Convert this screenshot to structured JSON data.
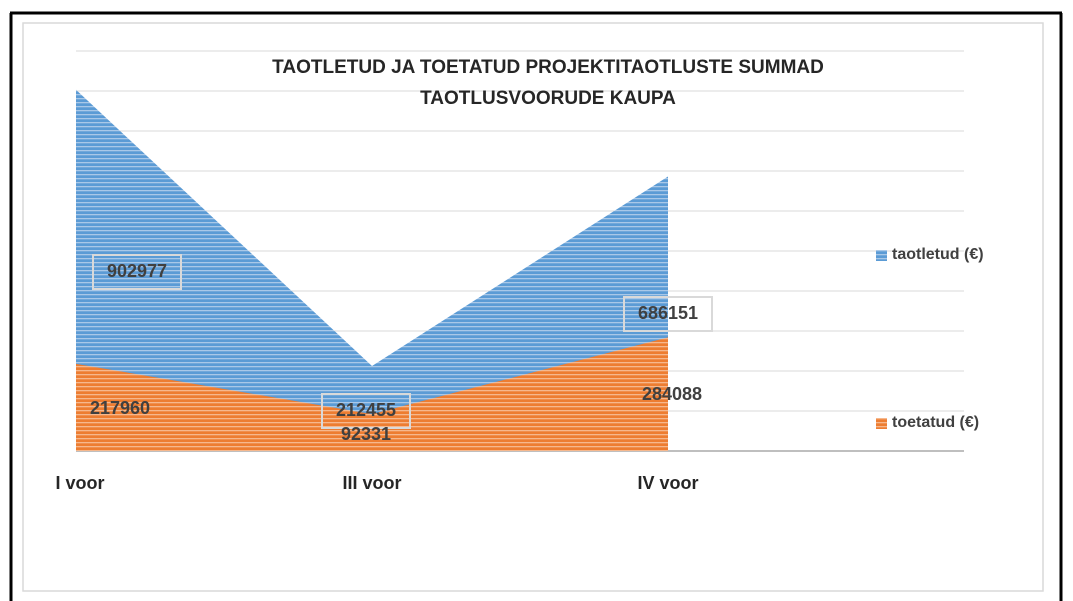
{
  "chart_data": {
    "type": "area",
    "title": [
      "TAOTLETUD JA TOETATUD PROJEKTITAOTLUSTE SUMMAD",
      "TAOTLUSVOORUDE KAUPA"
    ],
    "categories": [
      "I voor",
      "III voor",
      "IV voor",
      null
    ],
    "series": [
      {
        "name": "taotletud (€)",
        "color": "#5b9bd5",
        "values": [
          902977,
          212455,
          686151,
          null
        ]
      },
      {
        "name": "toetatud (€)",
        "color": "#ed7d31",
        "values": [
          217960,
          92331,
          284088,
          null
        ]
      }
    ],
    "ylim": [
      0,
      1000000
    ],
    "yticks": [
      0,
      100000,
      200000,
      300000,
      400000,
      500000,
      600000,
      700000,
      800000,
      900000,
      1000000
    ],
    "grid": true,
    "legend": "right"
  }
}
